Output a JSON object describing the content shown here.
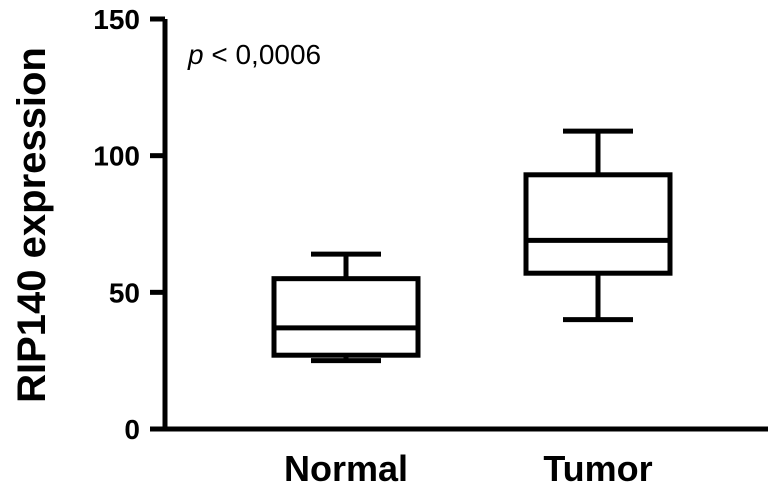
{
  "chart_data": {
    "type": "box",
    "ylabel": "RIP140 expression",
    "ylim": [
      0,
      150
    ],
    "yticks": [
      0,
      50,
      100,
      150
    ],
    "categories": [
      "Normal",
      "Tumor"
    ],
    "boxes": [
      {
        "name": "Normal",
        "whisker_low": 25,
        "q1": 27,
        "median": 37,
        "q3": 55,
        "whisker_high": 64
      },
      {
        "name": "Tumor",
        "whisker_low": 40,
        "q1": 57,
        "median": 69,
        "q3": 93,
        "whisker_high": 109
      }
    ],
    "annotation": {
      "italic": "p",
      "rest": " < 0,0006"
    },
    "grid": false,
    "legend": "none"
  }
}
